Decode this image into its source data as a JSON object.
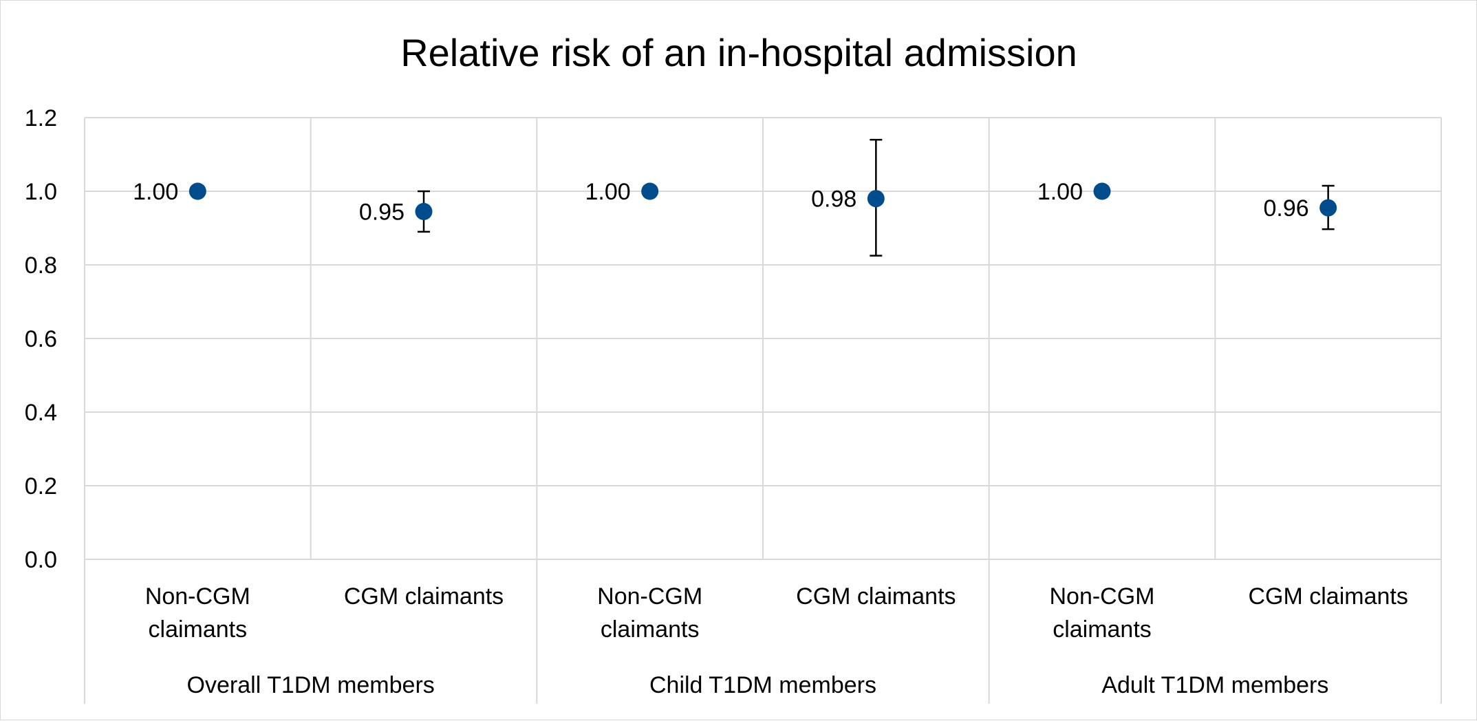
{
  "chart_data": {
    "type": "scatter",
    "title": "Relative risk of an in-hospital admission",
    "xlabel": "",
    "ylabel": "",
    "ylim": [
      0,
      1.2
    ],
    "y_ticks": [
      "0.0",
      "0.2",
      "0.4",
      "0.6",
      "0.8",
      "1.0",
      "1.2"
    ],
    "grid": true,
    "legend": "none",
    "marker_color": "#004C8C",
    "error_bar_color": "#000000",
    "groups": [
      {
        "label": "Overall T1DM members",
        "points": [
          {
            "category": [
              "Non-CGM",
              "claimants"
            ],
            "value": 1.0,
            "label": "1.00",
            "err_low": null,
            "err_high": null
          },
          {
            "category": [
              "CGM claimants"
            ],
            "value": 0.945,
            "label": "0.95",
            "err_low": 0.89,
            "err_high": 1.0
          }
        ]
      },
      {
        "label": "Child T1DM members",
        "points": [
          {
            "category": [
              "Non-CGM",
              "claimants"
            ],
            "value": 1.0,
            "label": "1.00",
            "err_low": null,
            "err_high": null
          },
          {
            "category": [
              "CGM claimants"
            ],
            "value": 0.98,
            "label": "0.98",
            "err_low": 0.825,
            "err_high": 1.14
          }
        ]
      },
      {
        "label": "Adult T1DM members",
        "points": [
          {
            "category": [
              "Non-CGM",
              "claimants"
            ],
            "value": 1.0,
            "label": "1.00",
            "err_low": null,
            "err_high": null
          },
          {
            "category": [
              "CGM claimants"
            ],
            "value": 0.955,
            "label": "0.96",
            "err_low": 0.897,
            "err_high": 1.015
          }
        ]
      }
    ]
  }
}
